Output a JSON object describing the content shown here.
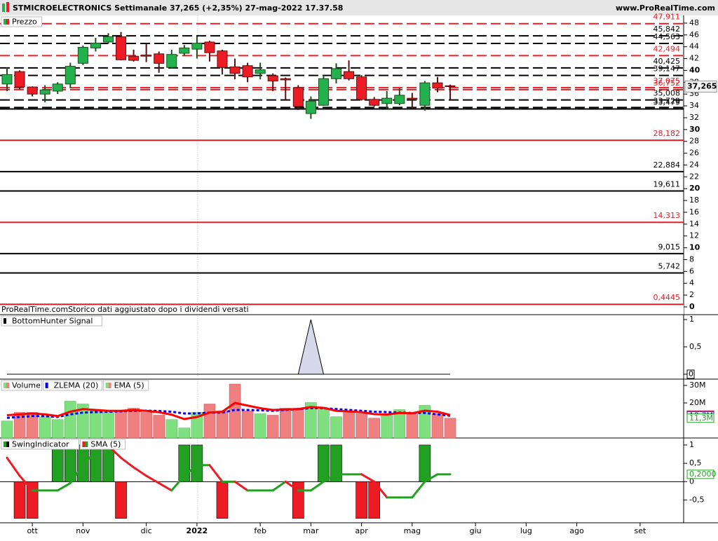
{
  "header": {
    "title": "STMICROELECTRONICS Settimanale 37,265 (+2,35%) 27-mag-2022 17.37.58",
    "site": "www.ProRealTime.com"
  },
  "footer_note": "ProRealTime.comStorico dati aggiustato dopo i dividendi versati",
  "chart_data": [
    {
      "type": "candlestick",
      "legend": "Prezzo",
      "color_up": "#22b14c",
      "color_down": "#ed1c24",
      "open": [
        37.7,
        39.8,
        37.2,
        36.0,
        36.5,
        37.7,
        41.2,
        43.8,
        44.8,
        45.7,
        42.4,
        42.6,
        42.8,
        40.5,
        42.9,
        43.6,
        44.8,
        43.3,
        40.6,
        40.8,
        39.5,
        39.1,
        38.6,
        37.1,
        32.7,
        34.1,
        38.6,
        39.8,
        38.9,
        35.1,
        34.4,
        34.4,
        35.3,
        34.1,
        37.9,
        37.4
      ],
      "high": [
        40.5,
        40.0,
        37.3,
        37.5,
        38.0,
        41.3,
        44.2,
        45.5,
        46.3,
        46.5,
        43.5,
        44.5,
        43.2,
        43.5,
        44.3,
        45.8,
        45.0,
        43.5,
        42.0,
        41.3,
        41.3,
        39.5,
        38.8,
        37.5,
        35.6,
        39.0,
        41.2,
        41.7,
        39.2,
        35.5,
        36.5,
        37.0,
        36.2,
        38.2,
        38.9,
        37.6
      ],
      "low": [
        36.5,
        36.8,
        35.6,
        34.6,
        36.0,
        37.0,
        40.9,
        43.2,
        44.5,
        41.7,
        41.5,
        41.4,
        39.6,
        40.3,
        42.5,
        42.0,
        41.5,
        39.3,
        38.5,
        38.0,
        38.5,
        36.5,
        35.0,
        33.3,
        31.8,
        34.0,
        37.8,
        38.3,
        34.9,
        33.9,
        33.5,
        34.1,
        33.5,
        33.2,
        36.3,
        35.1
      ],
      "close": [
        39.3,
        37.2,
        36.0,
        36.7,
        37.7,
        40.7,
        43.9,
        44.6,
        45.7,
        41.8,
        41.7,
        42.4,
        41.2,
        42.7,
        43.8,
        44.6,
        43.0,
        40.5,
        39.5,
        38.9,
        40.1,
        38.2,
        38.4,
        33.9,
        34.8,
        38.6,
        40.3,
        38.6,
        35.1,
        34.1,
        35.3,
        35.8,
        35.1,
        37.9,
        37.0,
        37.265
      ],
      "ylim": [
        -0.24,
        49.3
      ],
      "yticks": [
        0,
        2,
        4,
        6,
        8,
        10,
        12,
        14,
        16,
        18,
        20,
        22,
        24,
        26,
        28,
        30,
        32,
        34,
        36,
        38,
        40,
        42,
        44,
        46,
        48
      ],
      "levels": [
        {
          "value": 47.911,
          "label": "47,911",
          "color": "#ed1c24",
          "style": "dashed"
        },
        {
          "value": 45.842,
          "label": "45,842",
          "color": "#000000",
          "style": "dashed"
        },
        {
          "value": 44.563,
          "label": "44,563",
          "color": "#000000",
          "style": "dashed"
        },
        {
          "value": 42.494,
          "label": "42,494",
          "color": "#ed1c24",
          "style": "dashed"
        },
        {
          "value": 40.425,
          "label": "40,425",
          "color": "#000000",
          "style": "dashed"
        },
        {
          "value": 39.147,
          "label": "39,147",
          "color": "#000000",
          "style": "dashed"
        },
        {
          "value": 37.075,
          "label": "37,075",
          "color": "#ed1c24",
          "style": "dashed"
        },
        {
          "value": 36.752,
          "label": "36,752",
          "color": "#ed1c24",
          "style": "dashed"
        },
        {
          "value": 35.008,
          "label": "35,008",
          "color": "#000000",
          "style": "dashed"
        },
        {
          "value": 33.729,
          "label": "33,729",
          "color": "#000000",
          "style": "dashed"
        },
        {
          "value": 33.479,
          "label": "33,479",
          "color": "#000000",
          "style": "solid"
        },
        {
          "value": 28.182,
          "label": "28,182",
          "color": "#ed1c24",
          "style": "solid"
        },
        {
          "value": 22.884,
          "label": "22,884",
          "color": "#000000",
          "style": "solid"
        },
        {
          "value": 19.611,
          "label": "19,611",
          "color": "#000000",
          "style": "solid"
        },
        {
          "value": 14.313,
          "label": "14,313",
          "color": "#ed1c24",
          "style": "solid"
        },
        {
          "value": 9.015,
          "label": "9,015",
          "color": "#000000",
          "style": "solid"
        },
        {
          "value": 5.742,
          "label": "5,742",
          "color": "#000000",
          "style": "solid"
        },
        {
          "value": 0.4445,
          "label": "0,4445",
          "color": "#ed1c24",
          "style": "solid"
        }
      ],
      "last_price": {
        "value": 37.265,
        "label": "37,265"
      }
    },
    {
      "type": "area",
      "legend": "BottomHunter Signal",
      "color": "#d8d8ec",
      "values": [
        0,
        0,
        0,
        0,
        0,
        0,
        0,
        0,
        0,
        0,
        0,
        0,
        0,
        0,
        0,
        0,
        0,
        0,
        0,
        0,
        0,
        0,
        0,
        0,
        1,
        0,
        0,
        0,
        0,
        0,
        0,
        0,
        0,
        0,
        0,
        0
      ],
      "ylim": [
        -0.09,
        1.09
      ],
      "yticks": [
        0,
        {
          "value": 0.5,
          "label": "0,5"
        },
        1
      ]
    },
    {
      "type": "volume",
      "color_up": "#7ee07e",
      "color_down": "#f08080",
      "series": [
        {
          "name": "Volume",
          "values": [
            9700000,
            14600000,
            14600000,
            12100000,
            10500000,
            21000000,
            19400000,
            15400000,
            14600000,
            15400000,
            17000000,
            14600000,
            13000000,
            10500000,
            5700000,
            14600000,
            19400000,
            15400000,
            30800000,
            15400000,
            13800000,
            13000000,
            17000000,
            17000000,
            20200000,
            16200000,
            12100000,
            14600000,
            13800000,
            11300000,
            13000000,
            16200000,
            13800000,
            18600000,
            13800000,
            11300000
          ],
          "value_labels": [
            null,
            null,
            null,
            null,
            null,
            null,
            null,
            null,
            null,
            null,
            null,
            null,
            null,
            null,
            null,
            null,
            null,
            null,
            null,
            null,
            null,
            null,
            null,
            null,
            null,
            null,
            null,
            null,
            null,
            null,
            null,
            null,
            null,
            null,
            null,
            "11,3M"
          ]
        },
        {
          "name": "ZLEMA (20)",
          "color": "#0000ff",
          "values": [
            11500000,
            12000000,
            12500000,
            12500000,
            12000000,
            13500000,
            14500000,
            14800000,
            15000000,
            15200000,
            15500000,
            15600000,
            15400000,
            15000000,
            14000000,
            14000000,
            14500000,
            14500000,
            16000000,
            16000000,
            15800000,
            15500000,
            16000000,
            16500000,
            17000000,
            17000000,
            16500000,
            16000000,
            15500000,
            15000000,
            14800000,
            14500000,
            14300000,
            14300000,
            13500000,
            12700000
          ],
          "value_labels": [
            null,
            null,
            null,
            null,
            null,
            null,
            null,
            null,
            null,
            null,
            null,
            null,
            null,
            null,
            null,
            null,
            null,
            null,
            null,
            null,
            null,
            null,
            null,
            null,
            null,
            null,
            null,
            null,
            null,
            null,
            null,
            null,
            null,
            null,
            null,
            "12,7M"
          ]
        },
        {
          "name": "EMA (5)",
          "color": "#ff0000",
          "values": [
            13000000,
            13500000,
            14000000,
            13500000,
            12500000,
            15000000,
            16500000,
            16000000,
            15500000,
            15500000,
            16000000,
            15500000,
            14700000,
            13300000,
            10800000,
            12000000,
            14500000,
            15000000,
            20000000,
            18500000,
            17000000,
            16000000,
            16300000,
            16500000,
            17700000,
            17200000,
            15500000,
            15200000,
            14700000,
            13600000,
            13400000,
            14300000,
            14100000,
            15600000,
            15000000,
            13100000
          ],
          "value_labels": [
            null,
            null,
            null,
            null,
            null,
            null,
            null,
            null,
            null,
            null,
            null,
            null,
            null,
            null,
            null,
            null,
            null,
            null,
            null,
            null,
            null,
            null,
            null,
            null,
            null,
            null,
            null,
            null,
            null,
            null,
            null,
            null,
            null,
            null,
            null,
            "13,1M"
          ]
        }
      ],
      "ylim": [
        0,
        33600000
      ],
      "yticks": [
        {
          "value": 20000000,
          "label": "20M"
        },
        {
          "value": 30000000,
          "label": "30M"
        }
      ]
    },
    {
      "type": "swing",
      "color_up": "#22a022",
      "color_down": "#ed1c24",
      "series": [
        {
          "name": "SwingIndicator",
          "values": [
            0,
            -1,
            -1,
            0,
            1,
            1,
            1,
            1,
            1,
            -1,
            0,
            0,
            0,
            0,
            1,
            1,
            0,
            -1,
            0,
            0,
            0,
            0,
            0,
            -1,
            0,
            1,
            1,
            0,
            -1,
            -1,
            0,
            0,
            0,
            1,
            0,
            0
          ]
        },
        {
          "name": "SMA (5)",
          "values": [
            0.65,
            0.16,
            -0.24,
            -0.24,
            -0.24,
            -0.04,
            0.45,
            0.84,
            0.98,
            0.65,
            0.39,
            0.16,
            -0.04,
            -0.24,
            0.16,
            0.45,
            0.45,
            0,
            0,
            -0.24,
            -0.24,
            -0.24,
            0,
            -0.24,
            -0.24,
            0,
            0.2,
            0.2,
            0.2,
            0,
            -0.43,
            -0.43,
            -0.43,
            0,
            0.2,
            0.2
          ],
          "value_labels": [
            null,
            null,
            null,
            null,
            null,
            null,
            null,
            null,
            null,
            null,
            null,
            null,
            null,
            null,
            null,
            null,
            null,
            null,
            null,
            null,
            null,
            null,
            null,
            null,
            null,
            null,
            null,
            null,
            null,
            null,
            null,
            null,
            null,
            null,
            null,
            "0,2000"
          ]
        }
      ],
      "ylim": [
        -1.12,
        1.19
      ],
      "yticks": [
        {
          "value": -0.5,
          "label": "-0,5"
        },
        0,
        {
          "value": 0.5,
          "label": "0,5"
        },
        1
      ],
      "xlim": [
        -0.554,
        53.44
      ],
      "xticks": [
        {
          "value": 2,
          "label": "ott"
        },
        {
          "value": 6,
          "label": "nov"
        },
        {
          "value": 11,
          "label": "dic"
        },
        {
          "value": 15,
          "label": "2022"
        },
        {
          "value": 20,
          "label": "feb"
        },
        {
          "value": 24,
          "label": "mar"
        },
        {
          "value": 28,
          "label": "apr"
        },
        {
          "value": 32,
          "label": "mag"
        },
        {
          "value": 37,
          "label": "giu"
        },
        {
          "value": 41,
          "label": "lug"
        },
        {
          "value": 45,
          "label": "ago"
        },
        {
          "value": 50,
          "label": "set"
        }
      ]
    }
  ]
}
